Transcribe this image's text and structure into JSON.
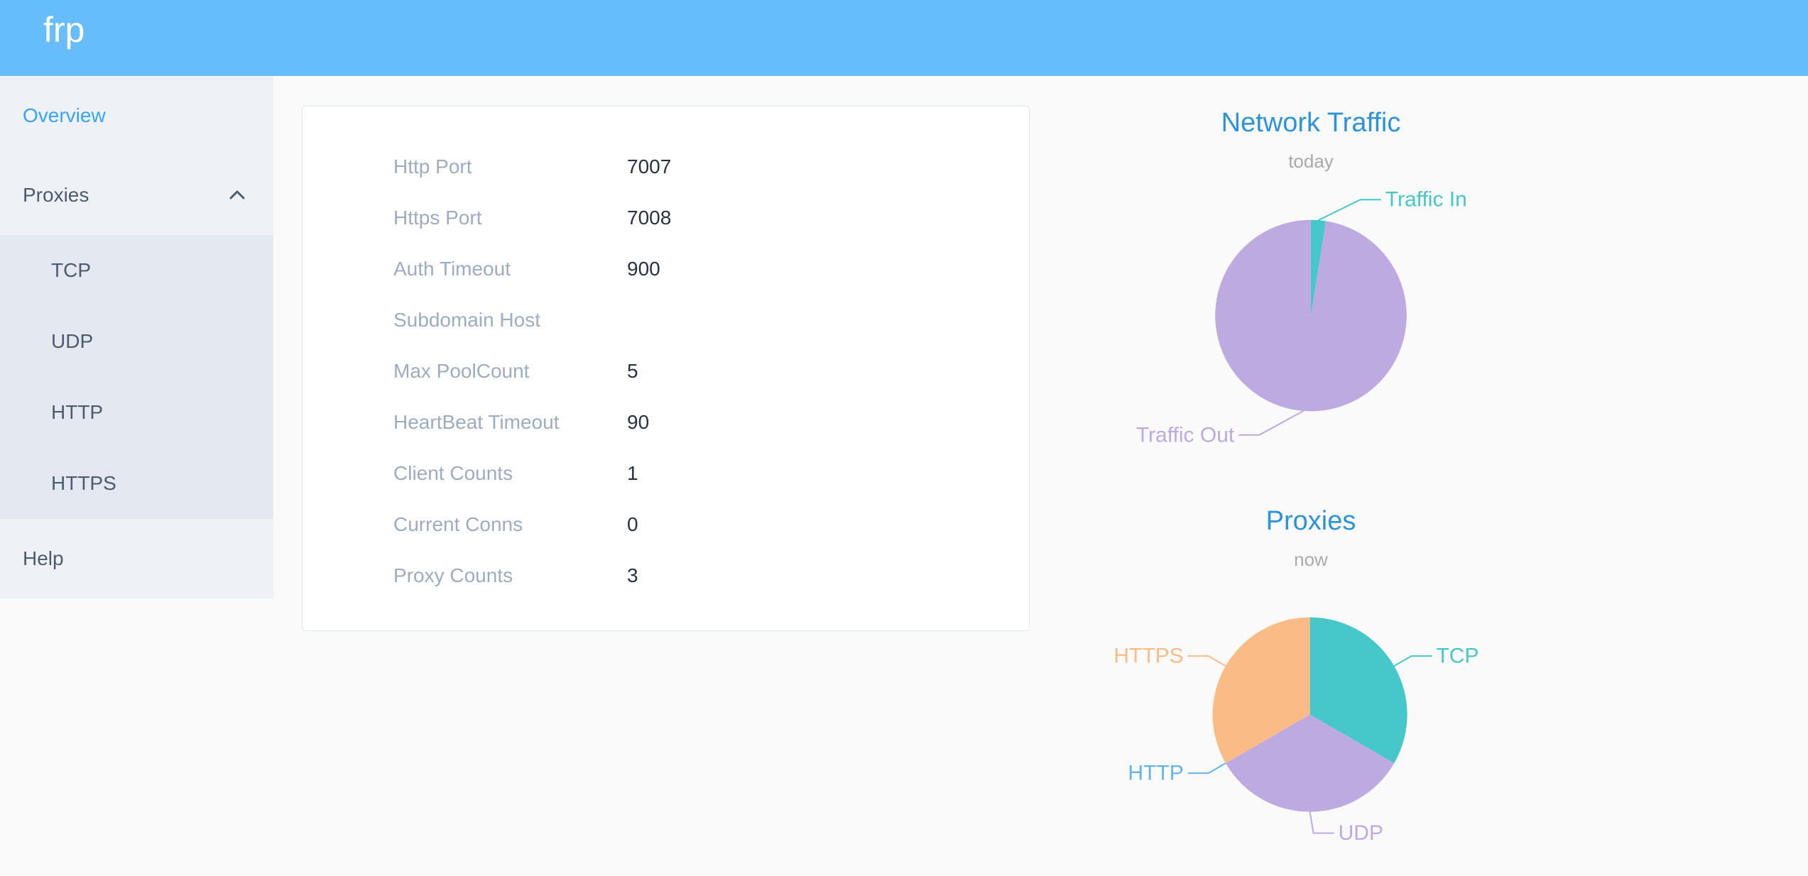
{
  "header": {
    "logo": "frp",
    "background_color": "#67bcfa"
  },
  "sidebar": {
    "items": [
      {
        "id": "overview",
        "label": "Overview",
        "active": true
      },
      {
        "id": "proxies",
        "label": "Proxies",
        "expanded": true,
        "children": [
          {
            "id": "tcp",
            "label": "TCP"
          },
          {
            "id": "udp",
            "label": "UDP"
          },
          {
            "id": "http",
            "label": "HTTP"
          },
          {
            "id": "https",
            "label": "HTTPS"
          }
        ]
      },
      {
        "id": "help",
        "label": "Help"
      }
    ],
    "active_color": "#36a3f7",
    "text_color": "#4c5b6d"
  },
  "overview_card": {
    "rows": [
      {
        "label": "Http Port",
        "value": "7007"
      },
      {
        "label": "Https Port",
        "value": "7008"
      },
      {
        "label": "Auth Timeout",
        "value": "900"
      },
      {
        "label": "Subdomain Host",
        "value": ""
      },
      {
        "label": "Max PoolCount",
        "value": "5"
      },
      {
        "label": "HeartBeat Timeout",
        "value": "90"
      },
      {
        "label": "Client Counts",
        "value": "1"
      },
      {
        "label": "Current Conns",
        "value": "0"
      },
      {
        "label": "Proxy Counts",
        "value": "3"
      }
    ]
  },
  "chart_data": [
    {
      "type": "pie",
      "title": "Network Traffic",
      "subtitle": "today",
      "legend_position": "none",
      "value_unit": "percent-of-total-estimated",
      "slices": [
        {
          "name": "Traffic In",
          "value": 2.5,
          "color": "#46c8cb"
        },
        {
          "name": "Traffic Out",
          "value": 97.5,
          "color": "#bdaae1"
        }
      ]
    },
    {
      "type": "pie",
      "title": "Proxies",
      "subtitle": "now",
      "legend_position": "none",
      "value_unit": "proxy-count",
      "slices": [
        {
          "name": "TCP",
          "value": 1,
          "color": "#46c8cb"
        },
        {
          "name": "UDP",
          "value": 1,
          "color": "#bdaae1"
        },
        {
          "name": "HTTP",
          "value": 0,
          "color": "#63b4ee"
        },
        {
          "name": "HTTPS",
          "value": 1,
          "color": "#fabb86"
        }
      ]
    }
  ],
  "colors": {
    "header_background": "#67bcfa",
    "sidebar_background": "#eef1f6",
    "submenu_background": "#e4e8f1",
    "chart_title": "#2d93d8",
    "chart_subtitle": "#aaaaaa",
    "card_label": "#9dacc0",
    "card_value": "#273342"
  }
}
